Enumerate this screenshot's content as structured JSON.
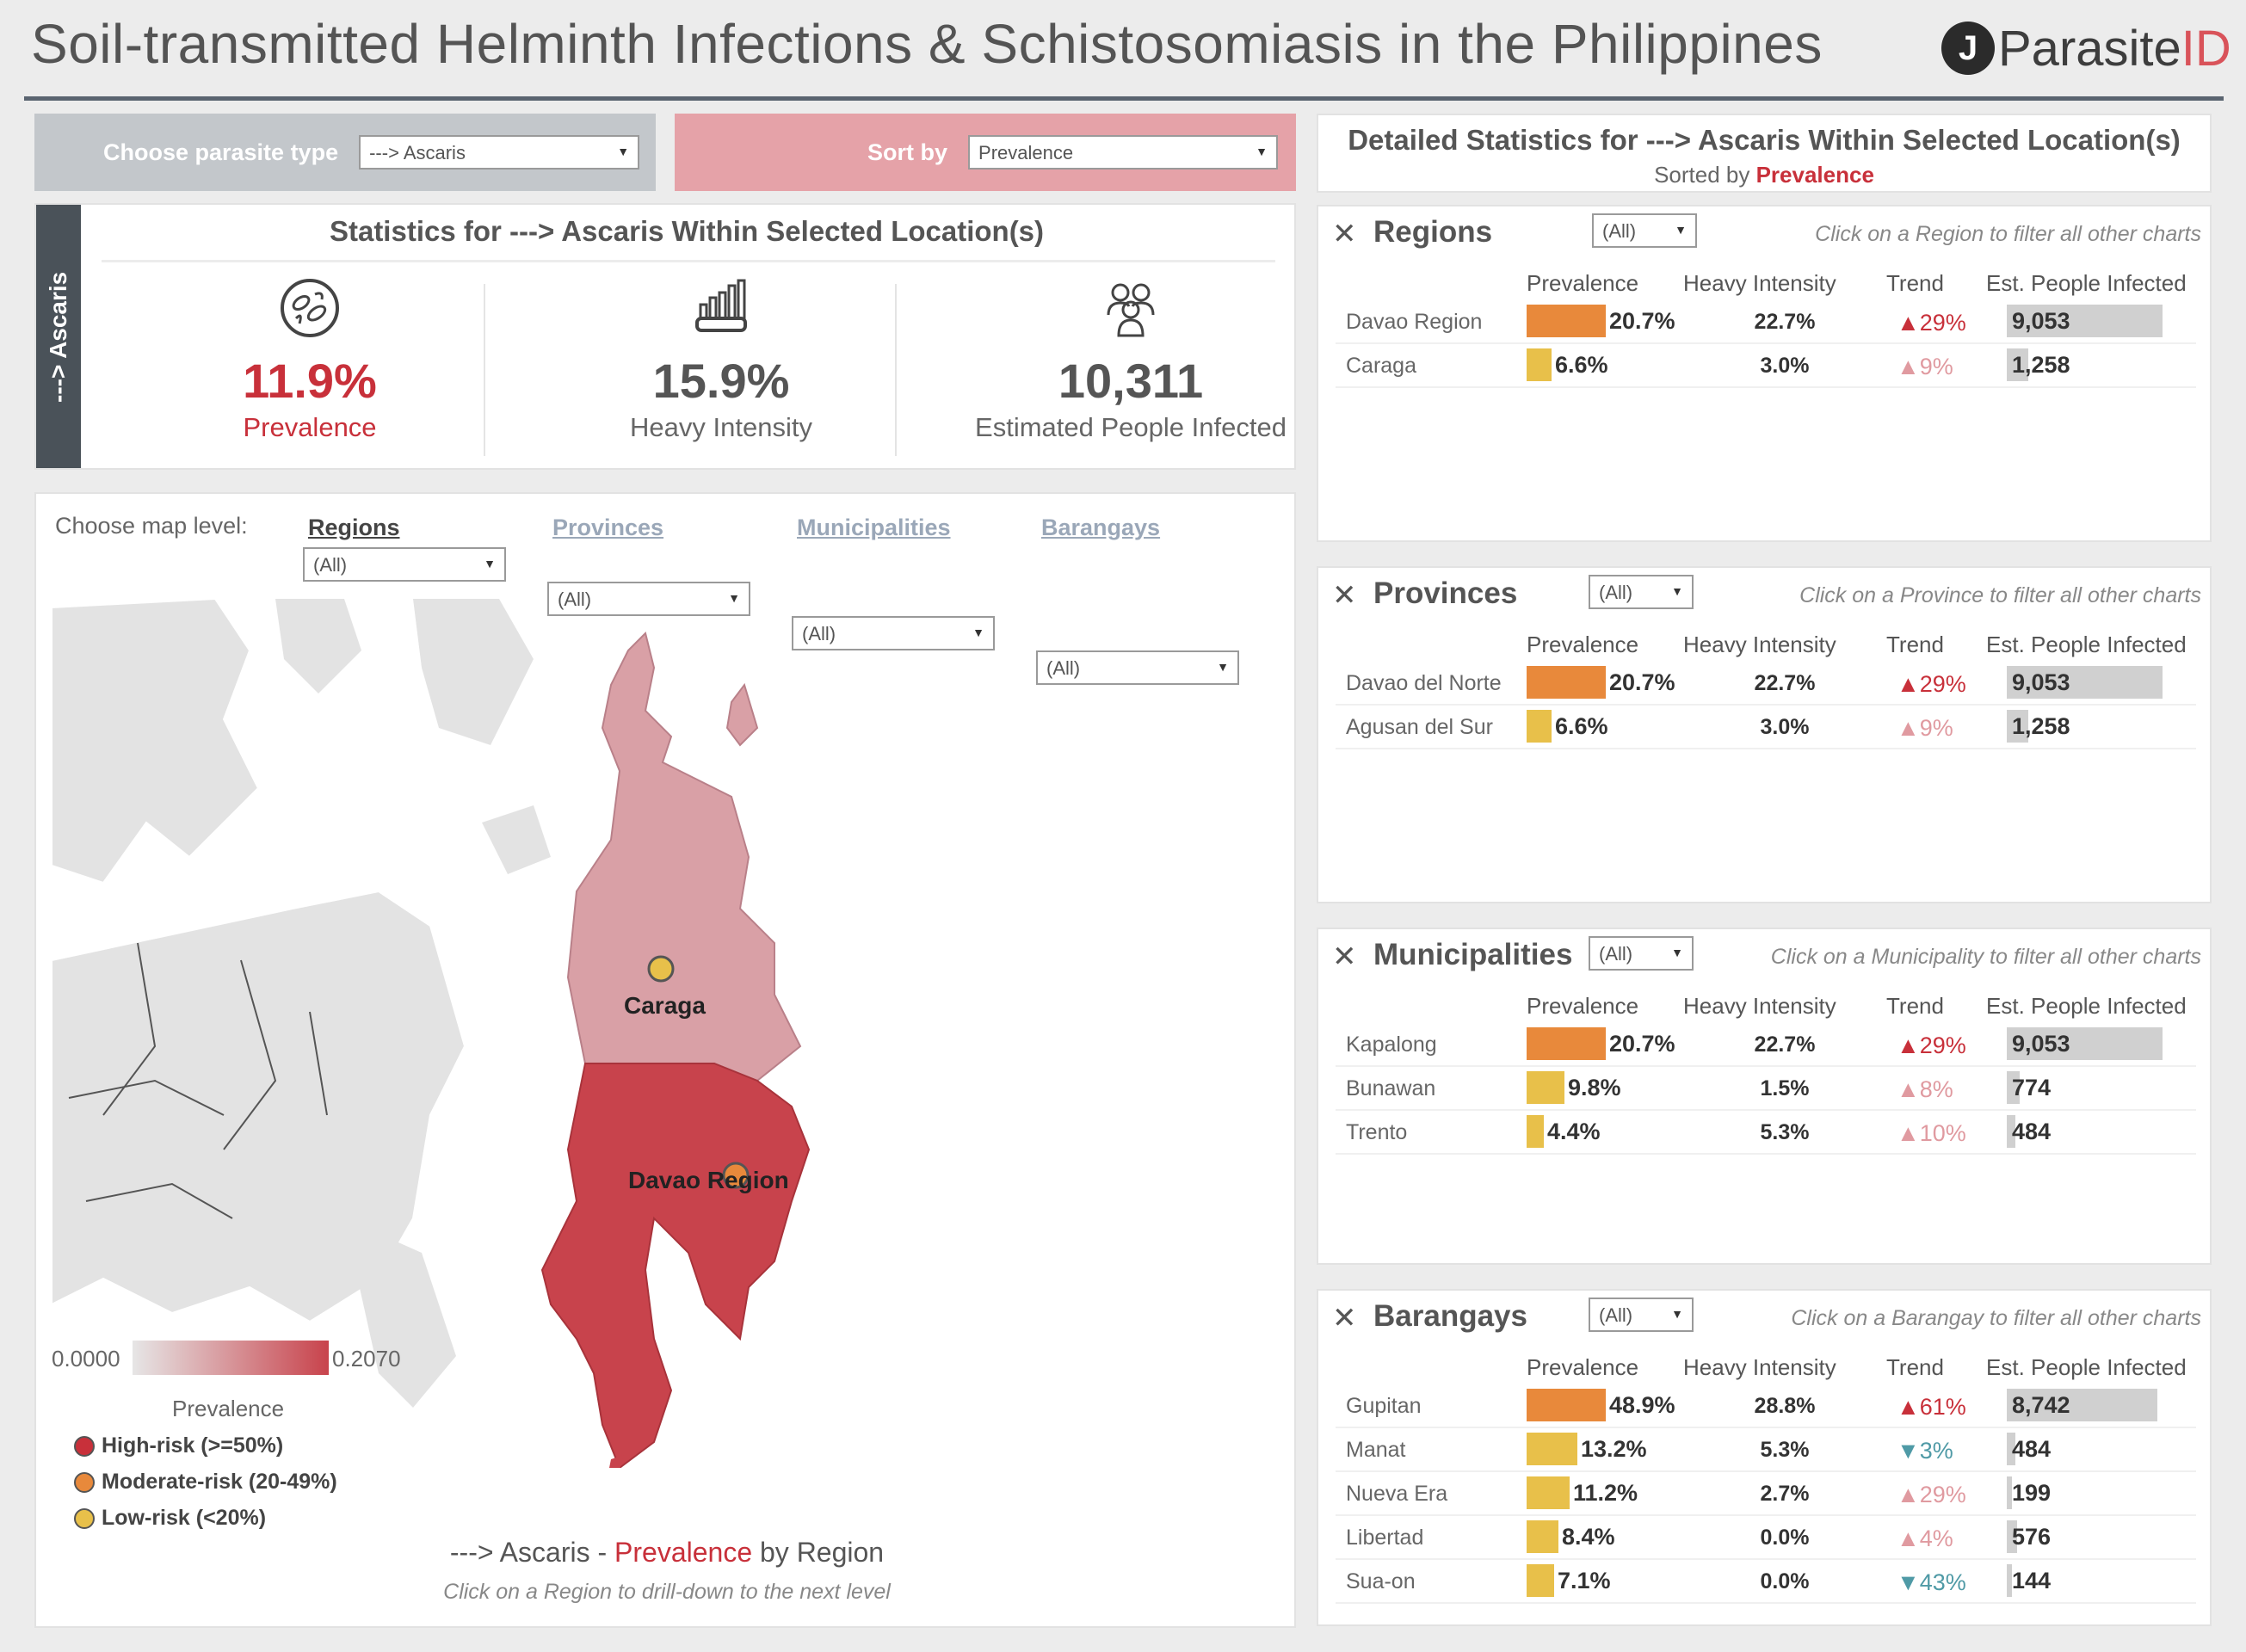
{
  "header": {
    "title": "Soil-transmitted Helminth Infections & Schistosomiasis in the Philippines",
    "logo_mark": "J",
    "logo_text": "Parasite",
    "logo_suffix": "ID"
  },
  "controls": {
    "parasite_label": "Choose parasite type",
    "parasite_value": "---> Ascaris",
    "sort_label": "Sort by",
    "sort_value": "Prevalence"
  },
  "stats": {
    "side_label": "---> Ascaris",
    "title": "Statistics for ---> Ascaris Within Selected Location(s)",
    "kpis": [
      {
        "icon": "parasite-icon",
        "value": "11.9%",
        "label": "Prevalence",
        "color": "#c8303a"
      },
      {
        "icon": "heavy-intensity-icon",
        "value": "15.9%",
        "label": "Heavy Intensity",
        "color": "#555555"
      },
      {
        "icon": "people-icon",
        "value": "10,311",
        "label": "Estimated People Infected",
        "color": "#555555"
      }
    ]
  },
  "map": {
    "level_label": "Choose map level:",
    "levels": [
      {
        "name": "Regions",
        "value": "(All)"
      },
      {
        "name": "Provinces",
        "value": "(All)"
      },
      {
        "name": "Municipalities",
        "value": "(All)"
      },
      {
        "name": "Barangays",
        "value": "(All)"
      }
    ],
    "region_labels": [
      "Caraga",
      "Davao Region"
    ],
    "scale_min": "0.0000",
    "scale_max": "0.2070",
    "scale_title": "Prevalence",
    "legend": [
      {
        "label": "High-risk (>=50%)",
        "color": "#c8303a"
      },
      {
        "label": "Moderate-risk (20-49%)",
        "color": "#e8893b"
      },
      {
        "label": "Low-risk (<20%)",
        "color": "#e8c04a"
      }
    ],
    "caption_prefix": "---> Ascaris - ",
    "caption_metric": "Prevalence",
    "caption_suffix": " by Region",
    "caption_hint": "Click on a Region to drill-down to the next level",
    "colors": {
      "high": "#c8434c",
      "mid": "#d9a0a6",
      "base": "#e3e3e3"
    }
  },
  "detail": {
    "title": "Detailed Statistics for ---> Ascaris Within Selected Location(s)",
    "sorted_by_prefix": "Sorted by ",
    "sorted_by_value": "Prevalence",
    "columns": [
      "Prevalence",
      "Heavy Intensity",
      "Trend",
      "Est. People Infected"
    ],
    "sections": [
      {
        "title": "Regions",
        "filter": "(All)",
        "hint": "Click on a Region to filter all other charts",
        "rows": [
          {
            "name": "Davao Region",
            "prevalence": "20.7%",
            "prev_frac": 0.207,
            "heavy": "22.7%",
            "trend": "29%",
            "trend_dir": "up",
            "people": "9,053",
            "people_n": 9053
          },
          {
            "name": "Caraga",
            "prevalence": "6.6%",
            "prev_frac": 0.066,
            "heavy": "3.0%",
            "trend": "9%",
            "trend_dir": "up",
            "people": "1,258",
            "people_n": 1258
          }
        ]
      },
      {
        "title": "Provinces",
        "filter": "(All)",
        "hint": "Click on a Province to filter all other charts",
        "rows": [
          {
            "name": "Davao del Norte",
            "prevalence": "20.7%",
            "prev_frac": 0.207,
            "heavy": "22.7%",
            "trend": "29%",
            "trend_dir": "up",
            "people": "9,053",
            "people_n": 9053
          },
          {
            "name": "Agusan del Sur",
            "prevalence": "6.6%",
            "prev_frac": 0.066,
            "heavy": "3.0%",
            "trend": "9%",
            "trend_dir": "up",
            "people": "1,258",
            "people_n": 1258
          }
        ]
      },
      {
        "title": "Municipalities",
        "filter": "(All)",
        "hint": "Click on a Municipality to filter all other charts",
        "rows": [
          {
            "name": "Kapalong",
            "prevalence": "20.7%",
            "prev_frac": 0.207,
            "heavy": "22.7%",
            "trend": "29%",
            "trend_dir": "up",
            "people": "9,053",
            "people_n": 9053
          },
          {
            "name": "Bunawan",
            "prevalence": "9.8%",
            "prev_frac": 0.098,
            "heavy": "1.5%",
            "trend": "8%",
            "trend_dir": "up",
            "people": "774",
            "people_n": 774
          },
          {
            "name": "Trento",
            "prevalence": "4.4%",
            "prev_frac": 0.044,
            "heavy": "5.3%",
            "trend": "10%",
            "trend_dir": "up",
            "people": "484",
            "people_n": 484
          }
        ]
      },
      {
        "title": "Barangays",
        "filter": "(All)",
        "hint": "Click on a Barangay to filter all other charts",
        "rows": [
          {
            "name": "Gupitan",
            "prevalence": "48.9%",
            "prev_frac": 0.489,
            "heavy": "28.8%",
            "trend": "61%",
            "trend_dir": "up",
            "people": "8,742",
            "people_n": 8742
          },
          {
            "name": "Manat",
            "prevalence": "13.2%",
            "prev_frac": 0.132,
            "heavy": "5.3%",
            "trend": "3%",
            "trend_dir": "down",
            "people": "484",
            "people_n": 484
          },
          {
            "name": "Nueva Era",
            "prevalence": "11.2%",
            "prev_frac": 0.112,
            "heavy": "2.7%",
            "trend": "29%",
            "trend_dir": "up",
            "people": "199",
            "people_n": 199
          },
          {
            "name": "Libertad",
            "prevalence": "8.4%",
            "prev_frac": 0.084,
            "heavy": "0.0%",
            "trend": "4%",
            "trend_dir": "up",
            "people": "576",
            "people_n": 576
          },
          {
            "name": "Sua-on",
            "prevalence": "7.1%",
            "prev_frac": 0.071,
            "heavy": "0.0%",
            "trend": "43%",
            "trend_dir": "down",
            "people": "144",
            "people_n": 144
          }
        ]
      }
    ]
  }
}
